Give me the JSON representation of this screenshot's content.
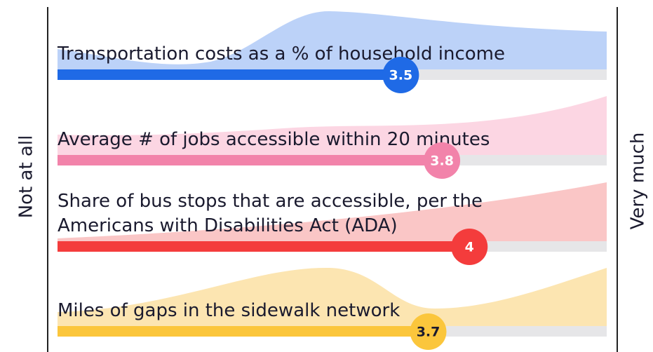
{
  "chart_data": {
    "type": "bar",
    "orientation": "horizontal",
    "categories": [
      "Transportation costs as a % of household income",
      "Average # of jobs accessible within 20 minutes",
      "Share of bus stops that are accessible, per the Americans with Disabilities Act (ADA)",
      "Miles of gaps in the sidewalk network"
    ],
    "values": [
      3.5,
      3.8,
      4,
      3.7
    ],
    "colors": [
      "#1f6ae6",
      "#f283aa",
      "#f43c3c",
      "#fbc63c"
    ],
    "distribution_colors": [
      "#bcd2f8",
      "#fcd6e3",
      "#fac6c6",
      "#fce5b1"
    ],
    "label_colors": [
      "#ffffff",
      "#ffffff",
      "#ffffff",
      "#1a1a2e"
    ],
    "track_color": "#e6e6e8",
    "xlim": [
      1,
      5
    ],
    "x_min_label": "Not at all",
    "x_max_label": "Very much"
  }
}
